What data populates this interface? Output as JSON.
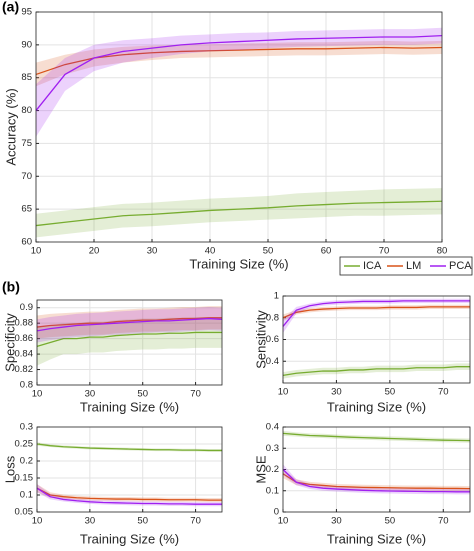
{
  "panel_labels": [
    "(a)",
    "(b)"
  ],
  "chart_data": [
    {
      "type": "line",
      "xlabel": "Training Size (%)",
      "ylabel": "Accuracy (%)",
      "x": [
        10,
        15,
        20,
        25,
        30,
        35,
        40,
        45,
        50,
        55,
        60,
        65,
        70,
        75,
        80
      ],
      "xlim": [
        10,
        80
      ],
      "xticks": [
        10,
        20,
        30,
        40,
        50,
        60,
        70,
        80
      ],
      "ylim": [
        60,
        95
      ],
      "yticks": [
        60,
        65,
        70,
        75,
        80,
        85,
        90,
        95
      ],
      "grid": true,
      "legend": "below-right",
      "series": [
        {
          "name": "ICA",
          "color": "#77ac30",
          "values": [
            62.5,
            63,
            63.5,
            64,
            64.2,
            64.5,
            64.8,
            65,
            65.2,
            65.5,
            65.7,
            65.9,
            66,
            66.1,
            66.2
          ],
          "errors": [
            1.8,
            1.8,
            1.8,
            1.8,
            1.8,
            1.8,
            1.8,
            1.8,
            1.8,
            1.9,
            1.9,
            1.9,
            2,
            2,
            2
          ]
        },
        {
          "name": "LM",
          "color": "#d95319",
          "values": [
            85.5,
            87,
            88,
            88.5,
            88.8,
            89,
            89.1,
            89.2,
            89.3,
            89.4,
            89.4,
            89.5,
            89.6,
            89.5,
            89.6
          ],
          "errors": [
            1.8,
            1.5,
            1.3,
            1.2,
            1.1,
            1,
            1,
            1,
            1,
            1,
            1,
            1,
            1,
            1,
            1
          ]
        },
        {
          "name": "PCA",
          "color": "#a020f0",
          "values": [
            80,
            85.5,
            88,
            89,
            89.5,
            90,
            90.3,
            90.5,
            90.7,
            90.9,
            91,
            91.1,
            91.2,
            91.2,
            91.4
          ],
          "errors": [
            4,
            2.5,
            2,
            1.7,
            1.5,
            1.4,
            1.3,
            1.3,
            1.2,
            1.2,
            1.2,
            1.2,
            1.2,
            1.2,
            1.2
          ]
        }
      ]
    },
    {
      "type": "line",
      "xlabel": "Training Size (%)",
      "ylabel": "Specificity",
      "x": [
        10,
        15,
        20,
        25,
        30,
        35,
        40,
        45,
        50,
        55,
        60,
        65,
        70,
        75,
        80
      ],
      "xlim": [
        10,
        80
      ],
      "xticks": [
        10,
        30,
        50,
        70
      ],
      "ylim": [
        0.8,
        0.91
      ],
      "yticks": [
        0.8,
        0.82,
        0.84,
        0.86,
        0.88,
        0.9
      ],
      "grid": true,
      "series": [
        {
          "color": "#77ac30",
          "values": [
            0.85,
            0.855,
            0.86,
            0.86,
            0.862,
            0.862,
            0.864,
            0.865,
            0.866,
            0.866,
            0.867,
            0.867,
            0.868,
            0.868,
            0.868
          ],
          "errors": [
            0.025,
            0.022,
            0.02,
            0.02,
            0.02,
            0.02,
            0.02,
            0.02,
            0.02,
            0.02,
            0.02,
            0.02,
            0.02,
            0.02,
            0.02
          ]
        },
        {
          "color": "#d95319",
          "values": [
            0.875,
            0.877,
            0.878,
            0.879,
            0.88,
            0.88,
            0.882,
            0.883,
            0.884,
            0.884,
            0.885,
            0.886,
            0.886,
            0.887,
            0.887
          ],
          "errors": [
            0.015,
            0.015,
            0.015,
            0.015,
            0.015,
            0.015,
            0.015,
            0.015,
            0.015,
            0.015,
            0.015,
            0.015,
            0.015,
            0.015,
            0.015
          ]
        },
        {
          "color": "#a020f0",
          "values": [
            0.87,
            0.873,
            0.875,
            0.877,
            0.878,
            0.879,
            0.88,
            0.881,
            0.882,
            0.883,
            0.883,
            0.884,
            0.885,
            0.886,
            0.885
          ],
          "errors": [
            0.015,
            0.015,
            0.015,
            0.015,
            0.015,
            0.015,
            0.015,
            0.015,
            0.015,
            0.015,
            0.015,
            0.015,
            0.015,
            0.015,
            0.015
          ]
        }
      ]
    },
    {
      "type": "line",
      "xlabel": "Training Size (%)",
      "ylabel": "Sensitivity",
      "x": [
        10,
        15,
        20,
        25,
        30,
        35,
        40,
        45,
        50,
        55,
        60,
        65,
        70,
        75,
        80
      ],
      "xlim": [
        10,
        80
      ],
      "xticks": [
        10,
        30,
        50,
        70
      ],
      "ylim": [
        0.2,
        1
      ],
      "yticks": [
        0.4,
        0.6,
        0.8,
        1
      ],
      "grid": true,
      "series": [
        {
          "color": "#77ac30",
          "values": [
            0.27,
            0.29,
            0.3,
            0.31,
            0.31,
            0.32,
            0.32,
            0.33,
            0.33,
            0.33,
            0.34,
            0.34,
            0.34,
            0.35,
            0.35
          ],
          "errors": [
            0.03,
            0.03,
            0.03,
            0.03,
            0.03,
            0.03,
            0.03,
            0.03,
            0.03,
            0.03,
            0.03,
            0.03,
            0.03,
            0.03,
            0.03
          ]
        },
        {
          "color": "#d95319",
          "values": [
            0.8,
            0.85,
            0.87,
            0.88,
            0.885,
            0.89,
            0.89,
            0.89,
            0.895,
            0.895,
            0.895,
            0.9,
            0.9,
            0.9,
            0.9
          ],
          "errors": [
            0.03,
            0.02,
            0.02,
            0.02,
            0.02,
            0.02,
            0.02,
            0.02,
            0.02,
            0.02,
            0.02,
            0.02,
            0.02,
            0.02,
            0.02
          ]
        },
        {
          "color": "#a020f0",
          "values": [
            0.72,
            0.87,
            0.91,
            0.93,
            0.94,
            0.945,
            0.95,
            0.95,
            0.95,
            0.955,
            0.955,
            0.955,
            0.955,
            0.955,
            0.955
          ],
          "errors": [
            0.06,
            0.03,
            0.02,
            0.02,
            0.02,
            0.02,
            0.02,
            0.02,
            0.02,
            0.02,
            0.02,
            0.02,
            0.02,
            0.02,
            0.02
          ]
        }
      ]
    },
    {
      "type": "line",
      "xlabel": "Training Size (%)",
      "ylabel": "Loss",
      "x": [
        10,
        15,
        20,
        25,
        30,
        35,
        40,
        45,
        50,
        55,
        60,
        65,
        70,
        75,
        80
      ],
      "xlim": [
        10,
        80
      ],
      "xticks": [
        10,
        30,
        50,
        70
      ],
      "ylim": [
        0.05,
        0.3
      ],
      "yticks": [
        0.05,
        0.1,
        0.15,
        0.2,
        0.25,
        0.3
      ],
      "grid": true,
      "series": [
        {
          "color": "#77ac30",
          "values": [
            0.25,
            0.245,
            0.242,
            0.24,
            0.238,
            0.237,
            0.236,
            0.235,
            0.234,
            0.233,
            0.233,
            0.232,
            0.232,
            0.231,
            0.231
          ],
          "errors": [
            0.005,
            0.004,
            0.004,
            0.004,
            0.004,
            0.004,
            0.004,
            0.004,
            0.004,
            0.004,
            0.004,
            0.004,
            0.004,
            0.004,
            0.004
          ]
        },
        {
          "color": "#d95319",
          "values": [
            0.12,
            0.1,
            0.095,
            0.092,
            0.09,
            0.089,
            0.088,
            0.088,
            0.087,
            0.087,
            0.086,
            0.086,
            0.086,
            0.085,
            0.085
          ],
          "errors": [
            0.012,
            0.008,
            0.006,
            0.006,
            0.006,
            0.006,
            0.006,
            0.006,
            0.006,
            0.006,
            0.006,
            0.006,
            0.006,
            0.006,
            0.006
          ]
        },
        {
          "color": "#a020f0",
          "values": [
            0.12,
            0.095,
            0.087,
            0.083,
            0.08,
            0.078,
            0.077,
            0.076,
            0.075,
            0.075,
            0.074,
            0.074,
            0.073,
            0.073,
            0.073
          ],
          "errors": [
            0.012,
            0.008,
            0.006,
            0.006,
            0.006,
            0.006,
            0.006,
            0.006,
            0.006,
            0.006,
            0.006,
            0.006,
            0.006,
            0.006,
            0.006
          ]
        }
      ]
    },
    {
      "type": "line",
      "xlabel": "Training Size (%)",
      "ylabel": "MSE",
      "x": [
        10,
        15,
        20,
        25,
        30,
        35,
        40,
        45,
        50,
        55,
        60,
        65,
        70,
        75,
        80
      ],
      "xlim": [
        10,
        80
      ],
      "xticks": [
        10,
        30,
        50,
        70
      ],
      "ylim": [
        0,
        0.4
      ],
      "yticks": [
        0,
        0.1,
        0.2,
        0.3,
        0.4
      ],
      "grid": true,
      "series": [
        {
          "color": "#77ac30",
          "values": [
            0.37,
            0.365,
            0.36,
            0.358,
            0.355,
            0.352,
            0.35,
            0.348,
            0.346,
            0.344,
            0.342,
            0.34,
            0.338,
            0.337,
            0.336
          ],
          "errors": [
            0.012,
            0.01,
            0.01,
            0.01,
            0.01,
            0.01,
            0.01,
            0.01,
            0.01,
            0.01,
            0.01,
            0.01,
            0.01,
            0.01,
            0.01
          ]
        },
        {
          "color": "#d95319",
          "values": [
            0.18,
            0.14,
            0.13,
            0.125,
            0.12,
            0.118,
            0.116,
            0.115,
            0.114,
            0.113,
            0.112,
            0.112,
            0.111,
            0.111,
            0.11
          ],
          "errors": [
            0.02,
            0.014,
            0.012,
            0.012,
            0.012,
            0.012,
            0.012,
            0.012,
            0.012,
            0.012,
            0.012,
            0.012,
            0.012,
            0.012,
            0.012
          ]
        },
        {
          "color": "#a020f0",
          "values": [
            0.2,
            0.14,
            0.12,
            0.112,
            0.108,
            0.105,
            0.102,
            0.1,
            0.099,
            0.098,
            0.097,
            0.096,
            0.096,
            0.095,
            0.095
          ],
          "errors": [
            0.025,
            0.014,
            0.012,
            0.012,
            0.012,
            0.012,
            0.012,
            0.012,
            0.012,
            0.012,
            0.012,
            0.012,
            0.012,
            0.012,
            0.012
          ]
        }
      ]
    }
  ]
}
